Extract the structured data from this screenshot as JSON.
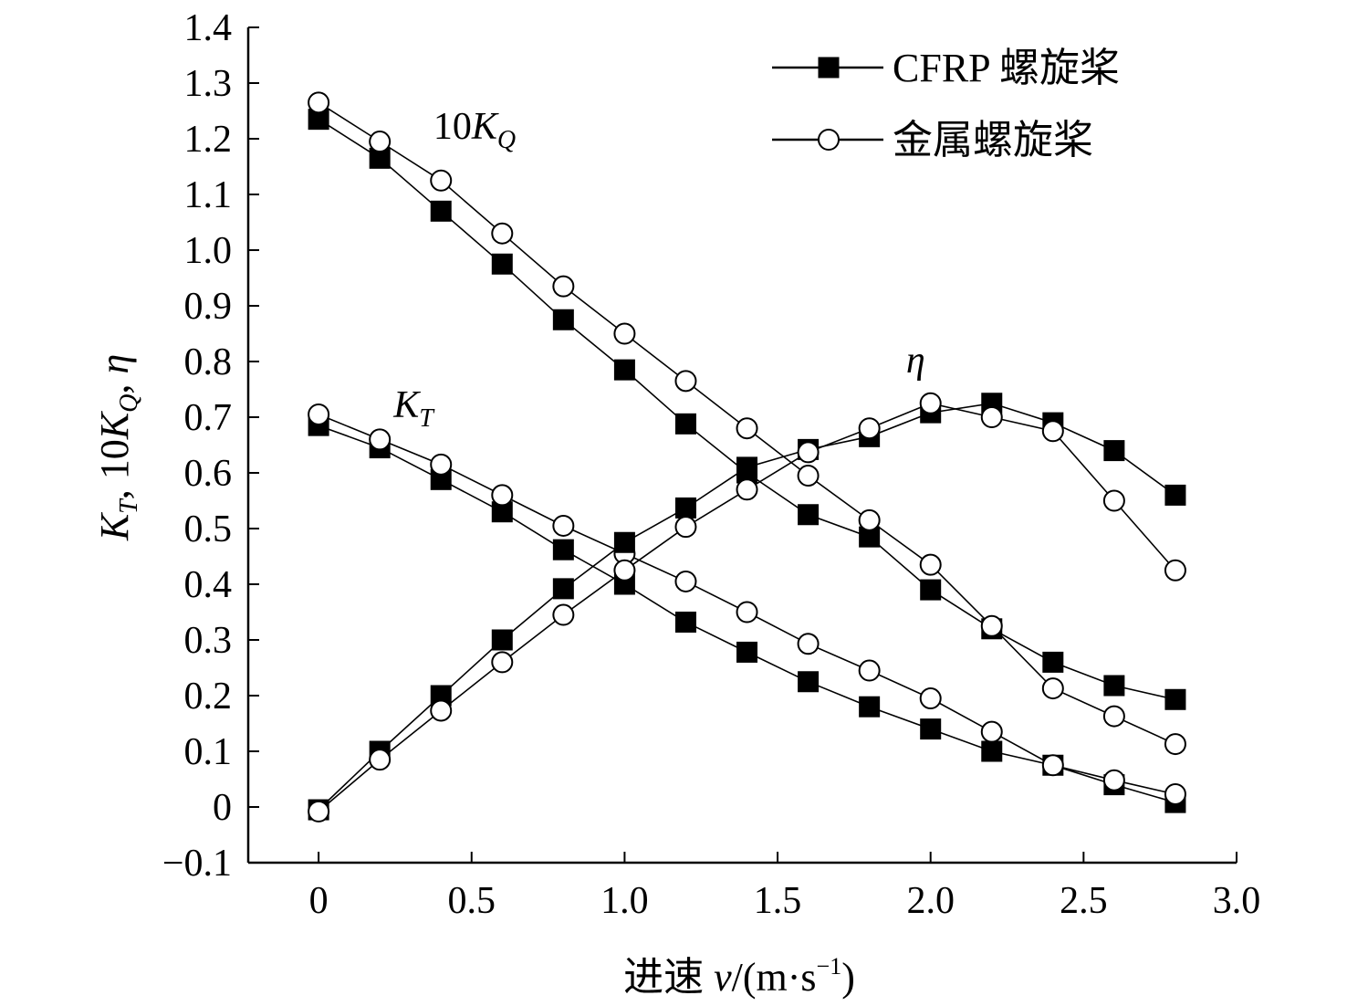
{
  "chart_data": {
    "type": "line",
    "xlabel_prefix": "进速 ",
    "xlabel_var": "v",
    "xlabel_unit_open": "/(m·s",
    "xlabel_unit_exp": "−1",
    "xlabel_unit_close": ")",
    "ylabel_main_1": "K",
    "ylabel_sub_1": "T",
    "ylabel_sep_1": ", 10",
    "ylabel_main_2": "K",
    "ylabel_sub_2": "Q",
    "ylabel_sep_2": ", ",
    "ylabel_main_3": "η",
    "xlim": [
      -0.23,
      3.0
    ],
    "ylim": [
      -0.1,
      1.4
    ],
    "x_ticks": [
      0,
      0.5,
      1.0,
      1.5,
      2.0,
      2.5,
      3.0
    ],
    "x_tick_labels": [
      "0",
      "0.5",
      "1.0",
      "1.5",
      "2.0",
      "2.5",
      "3.0"
    ],
    "y_ticks": [
      -0.1,
      0,
      0.1,
      0.2,
      0.3,
      0.4,
      0.5,
      0.6,
      0.7,
      0.8,
      0.9,
      1.0,
      1.1,
      1.2,
      1.3,
      1.4
    ],
    "y_tick_labels": [
      "−0.1",
      "0",
      "0.1",
      "0.2",
      "0.3",
      "0.4",
      "0.5",
      "0.6",
      "0.7",
      "0.8",
      "0.9",
      "1.0",
      "1.1",
      "1.2",
      "1.3",
      "1.4"
    ],
    "grid": false,
    "legend_position": "top-right",
    "legend": [
      {
        "label": "CFRP 螺旋桨",
        "marker": "filled-square"
      },
      {
        "label": "金属螺旋桨",
        "marker": "open-circle"
      }
    ],
    "x": [
      0,
      0.2,
      0.4,
      0.6,
      0.8,
      1.0,
      1.2,
      1.4,
      1.6,
      1.8,
      2.0,
      2.2,
      2.4,
      2.6,
      2.8
    ],
    "series": [
      {
        "group": "10KQ",
        "material": "CFRP",
        "marker": "filled-square",
        "values": [
          1.235,
          1.165,
          1.07,
          0.975,
          0.875,
          0.785,
          0.688,
          0.6,
          0.525,
          0.485,
          0.39,
          0.32,
          0.26,
          0.218,
          0.193
        ]
      },
      {
        "group": "10KQ",
        "material": "metal",
        "marker": "open-circle",
        "values": [
          1.265,
          1.195,
          1.125,
          1.03,
          0.935,
          0.85,
          0.765,
          0.68,
          0.595,
          0.515,
          0.435,
          0.325,
          0.213,
          0.163,
          0.113
        ]
      },
      {
        "group": "KT",
        "material": "CFRP",
        "marker": "filled-square",
        "values": [
          0.685,
          0.645,
          0.588,
          0.53,
          0.462,
          0.4,
          0.332,
          0.278,
          0.225,
          0.18,
          0.14,
          0.1,
          0.075,
          0.04,
          0.008
        ]
      },
      {
        "group": "KT",
        "material": "metal",
        "marker": "open-circle",
        "values": [
          0.705,
          0.66,
          0.615,
          0.56,
          0.505,
          0.455,
          0.405,
          0.35,
          0.293,
          0.245,
          0.195,
          0.135,
          0.075,
          0.048,
          0.023
        ]
      },
      {
        "group": "eta",
        "material": "CFRP",
        "marker": "filled-square",
        "values": [
          -0.005,
          0.1,
          0.2,
          0.3,
          0.392,
          0.475,
          0.537,
          0.61,
          0.642,
          0.665,
          0.708,
          0.725,
          0.69,
          0.64,
          0.56
        ]
      },
      {
        "group": "eta",
        "material": "metal",
        "marker": "open-circle",
        "values": [
          -0.008,
          0.085,
          0.173,
          0.26,
          0.345,
          0.425,
          0.503,
          0.57,
          0.637,
          0.68,
          0.725,
          0.7,
          0.675,
          0.55,
          0.425
        ]
      }
    ],
    "annotations": [
      {
        "id": "kq",
        "prefix": "10",
        "main": "K",
        "sub": "Q",
        "at_x": 0.375,
        "at_y": 1.2
      },
      {
        "id": "kt",
        "prefix": "",
        "main": "K",
        "sub": "T",
        "at_x": 0.245,
        "at_y": 0.7
      },
      {
        "id": "eta",
        "prefix": "",
        "main": "η",
        "sub": "",
        "at_x": 1.92,
        "at_y": 0.78
      }
    ]
  }
}
